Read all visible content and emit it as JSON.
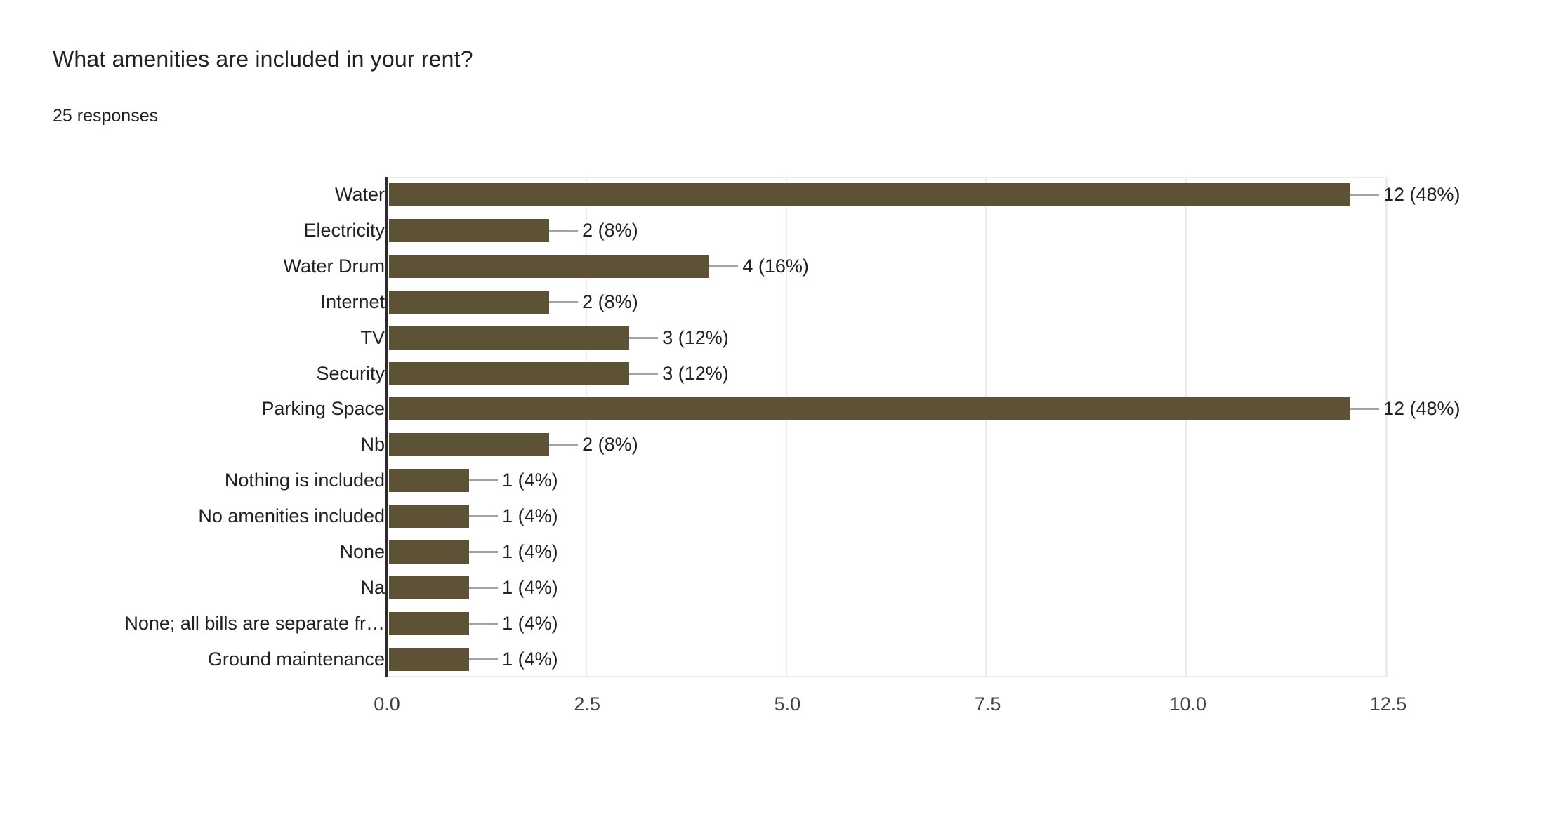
{
  "header": {
    "title": "What amenities are included in your rent?",
    "subtitle": "25 responses"
  },
  "chart_data": {
    "type": "bar",
    "orientation": "horizontal",
    "title": "What amenities are included in your rent?",
    "subtitle": "25 responses",
    "categories": [
      "Water",
      "Electricity",
      "Water Drum",
      "Internet",
      "TV",
      "Security",
      "Parking Space",
      "Nb",
      "Nothing is included",
      "No amenities included",
      "None",
      "Na",
      "None; all bills are separate fr…",
      "Ground maintenance"
    ],
    "values": [
      12,
      2,
      4,
      2,
      3,
      3,
      12,
      2,
      1,
      1,
      1,
      1,
      1,
      1
    ],
    "value_labels": [
      "12 (48%)",
      "2 (8%)",
      "4 (16%)",
      "2 (8%)",
      "3 (12%)",
      "3 (12%)",
      "12 (48%)",
      "2 (8%)",
      "1 (4%)",
      "1 (4%)",
      "1 (4%)",
      "1 (4%)",
      "1 (4%)",
      "1 (4%)"
    ],
    "xlabel": "",
    "ylabel": "",
    "xlim": [
      0,
      12.5
    ],
    "xticks": [
      0.0,
      2.5,
      5.0,
      7.5,
      10.0,
      12.5
    ],
    "xtick_labels": [
      "0.0",
      "2.5",
      "5.0",
      "7.5",
      "10.0",
      "12.5"
    ],
    "grid": true,
    "legend": false,
    "colors": {
      "bar": "#5e5236",
      "callout_line": "#a2a2a2",
      "gridline": "#ececec",
      "axis_line": "#2b2b2b",
      "text": "#212121",
      "tick_text": "#424242"
    }
  }
}
